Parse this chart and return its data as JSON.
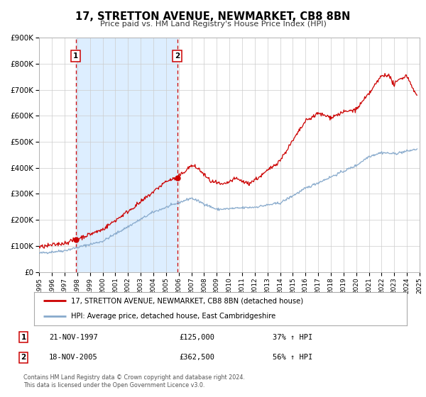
{
  "title": "17, STRETTON AVENUE, NEWMARKET, CB8 8BN",
  "subtitle": "Price paid vs. HM Land Registry's House Price Index (HPI)",
  "legend_line1": "17, STRETTON AVENUE, NEWMARKET, CB8 8BN (detached house)",
  "legend_line2": "HPI: Average price, detached house, East Cambridgeshire",
  "footnote1": "Contains HM Land Registry data © Crown copyright and database right 2024.",
  "footnote2": "This data is licensed under the Open Government Licence v3.0.",
  "property_color": "#cc0000",
  "hpi_color": "#88aacc",
  "shaded_color": "#ddeeff",
  "background_color": "#ffffff",
  "plot_bg_color": "#ffffff",
  "ylim": [
    0,
    900000
  ],
  "yticks": [
    0,
    100000,
    200000,
    300000,
    400000,
    500000,
    600000,
    700000,
    800000,
    900000
  ],
  "ytick_labels": [
    "£0",
    "£100K",
    "£200K",
    "£300K",
    "£400K",
    "£500K",
    "£600K",
    "£700K",
    "£800K",
    "£900K"
  ],
  "sale1_date": "21-NOV-1997",
  "sale1_price": 125000,
  "sale1_hpi": "37% ↑ HPI",
  "sale2_date": "18-NOV-2005",
  "sale2_price": 362500,
  "sale2_hpi": "56% ↑ HPI",
  "sale1_x": 1997.89,
  "sale2_x": 2005.89,
  "xmin": 1995,
  "xmax": 2025,
  "xticks": [
    1995,
    1996,
    1997,
    1998,
    1999,
    2000,
    2001,
    2002,
    2003,
    2004,
    2005,
    2006,
    2007,
    2008,
    2009,
    2010,
    2011,
    2012,
    2013,
    2014,
    2015,
    2016,
    2017,
    2018,
    2019,
    2020,
    2021,
    2022,
    2023,
    2024,
    2025
  ]
}
